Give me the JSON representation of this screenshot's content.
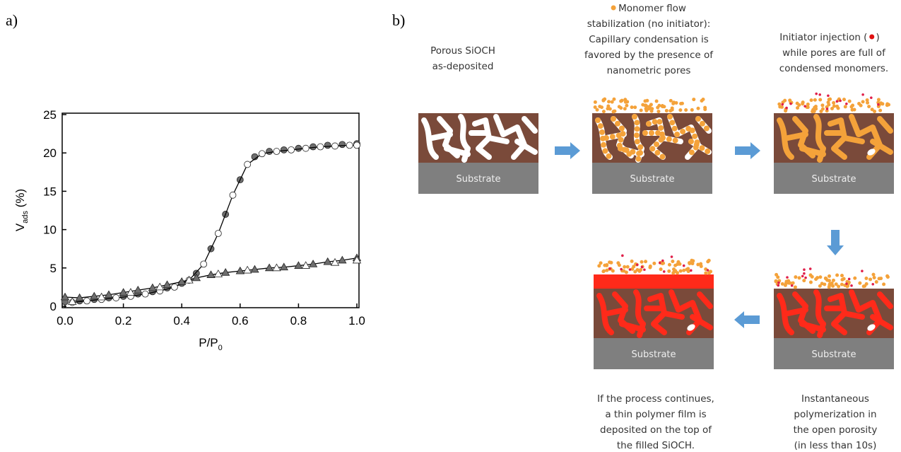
{
  "panel_labels": [
    "a)",
    "b)"
  ],
  "chart_data": {
    "type": "scatter",
    "x_label": [
      "P/P",
      "0"
    ],
    "y_label": [
      "V",
      "ads",
      " (%)"
    ],
    "xlim": [
      0,
      1
    ],
    "ylim": [
      0,
      25
    ],
    "xticks": [
      {
        "value": 0,
        "label": "0.0"
      },
      0.2,
      0.4,
      0.6,
      0.8,
      {
        "value": 1,
        "label": "1.0"
      }
    ],
    "yticks": [
      0,
      5,
      10,
      15,
      20,
      25
    ],
    "series": [
      {
        "marker": "circle",
        "color": "#6e6e6e",
        "line": false,
        "x": [
          0,
          0.05,
          0.1,
          0.15,
          0.2,
          0.25,
          0.3,
          0.35,
          0.4,
          0.45,
          0.5,
          0.55,
          0.6,
          0.65,
          0.7,
          0.75,
          0.8,
          0.85,
          0.9,
          0.95,
          1.0
        ],
        "values": [
          0.6,
          0.7,
          0.9,
          1.1,
          1.3,
          1.6,
          1.9,
          2.4,
          3.0,
          4.3,
          7.5,
          12,
          16.5,
          19.5,
          20.2,
          20.4,
          20.6,
          20.8,
          21,
          21.1,
          21.2
        ]
      },
      {
        "marker": "circle",
        "color": "#ffffff",
        "line": true,
        "x": [
          0.025,
          0.075,
          0.125,
          0.175,
          0.225,
          0.275,
          0.325,
          0.375,
          0.425,
          0.475,
          0.525,
          0.575,
          0.625,
          0.675,
          0.725,
          0.775,
          0.825,
          0.875,
          0.925,
          0.975,
          1.0
        ],
        "values": [
          0.5,
          0.7,
          0.9,
          1.1,
          1.3,
          1.6,
          2.0,
          2.5,
          3.4,
          5.5,
          9.5,
          14.5,
          18.5,
          19.9,
          20.2,
          20.4,
          20.6,
          20.8,
          20.9,
          21,
          21
        ]
      },
      {
        "marker": "triangle",
        "color": "#6e6e6e",
        "line": true,
        "x": [
          0,
          0.05,
          0.1,
          0.15,
          0.2,
          0.25,
          0.3,
          0.35,
          0.4,
          0.45,
          0.5,
          0.55,
          0.6,
          0.65,
          0.7,
          0.75,
          0.8,
          0.85,
          0.9,
          0.95,
          1.0
        ],
        "values": [
          1.2,
          1.1,
          1.3,
          1.5,
          1.8,
          2.1,
          2.4,
          2.8,
          3.2,
          3.7,
          4.1,
          4.4,
          4.6,
          4.8,
          5.0,
          5.1,
          5.3,
          5.5,
          5.8,
          6.0,
          6.3
        ]
      },
      {
        "marker": "triangle",
        "color": "#ffffff",
        "line": false,
        "x": [
          0.025,
          0.125,
          0.225,
          0.325,
          0.425,
          0.525,
          0.625,
          0.725,
          0.825,
          0.925,
          1.0
        ],
        "values": [
          0.6,
          1.2,
          1.8,
          2.5,
          3.4,
          4.2,
          4.7,
          5.0,
          5.3,
          5.7,
          6.0
        ]
      }
    ]
  },
  "diagram": {
    "substrate_label": "Substrate",
    "captions": [
      {
        "lines": [
          "Porous SiOCH",
          "as-deposited"
        ]
      },
      {
        "lines": [
          "Monomer flow",
          "stabilization (no initiator):",
          "Capillary condensation is",
          "favored by the presence of",
          "nanometric pores"
        ]
      },
      {
        "lines": [
          "Initiator injection (",
          ")",
          "while pores are full of",
          "condensed monomers."
        ]
      },
      {
        "lines": [
          "If the process continues,",
          "a thin polymer film is",
          "deposited on the top of",
          "the filled SiOCH."
        ]
      },
      {
        "lines": [
          "Instantaneous",
          "polymerization in",
          "the open porosity",
          "(in less than 10s)"
        ]
      }
    ]
  }
}
